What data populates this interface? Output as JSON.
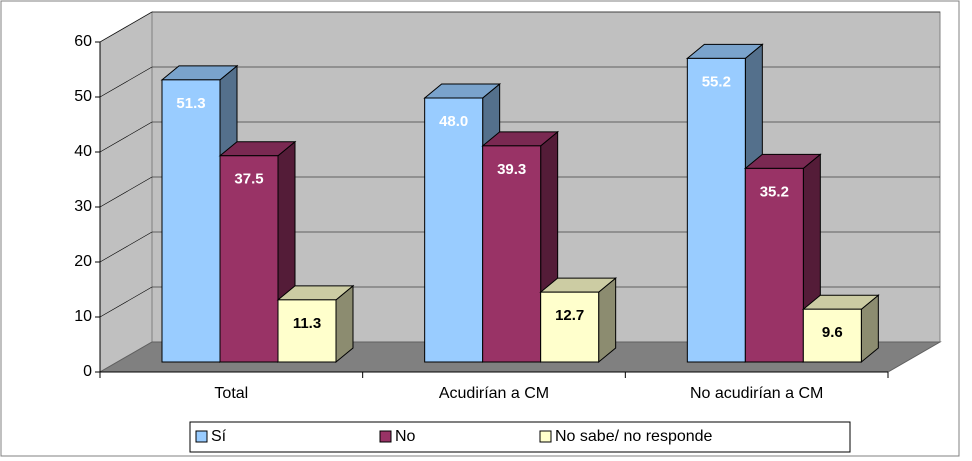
{
  "chart_data": {
    "type": "bar3d",
    "categories": [
      "Total",
      "Acudirían a CM",
      "No acudirían a CM"
    ],
    "series": [
      {
        "name": "Sí",
        "color": "#99ccff",
        "values": [
          51.3,
          48.0,
          55.2
        ],
        "value_labels": [
          "51.3",
          "48.0",
          "55.2"
        ]
      },
      {
        "name": "No",
        "color": "#993366",
        "values": [
          37.5,
          39.3,
          35.2
        ],
        "value_labels": [
          "37.5",
          "39.3",
          "35.2"
        ]
      },
      {
        "name": "No sabe/ no responde",
        "color": "#ffffcc",
        "values": [
          11.3,
          12.7,
          9.6
        ],
        "value_labels": [
          "11.3",
          "12.7",
          "9.6"
        ]
      }
    ],
    "ylim": [
      0,
      60
    ],
    "yticks": [
      0,
      10,
      20,
      30,
      40,
      50,
      60
    ],
    "grid": true,
    "legend": "bottom"
  }
}
